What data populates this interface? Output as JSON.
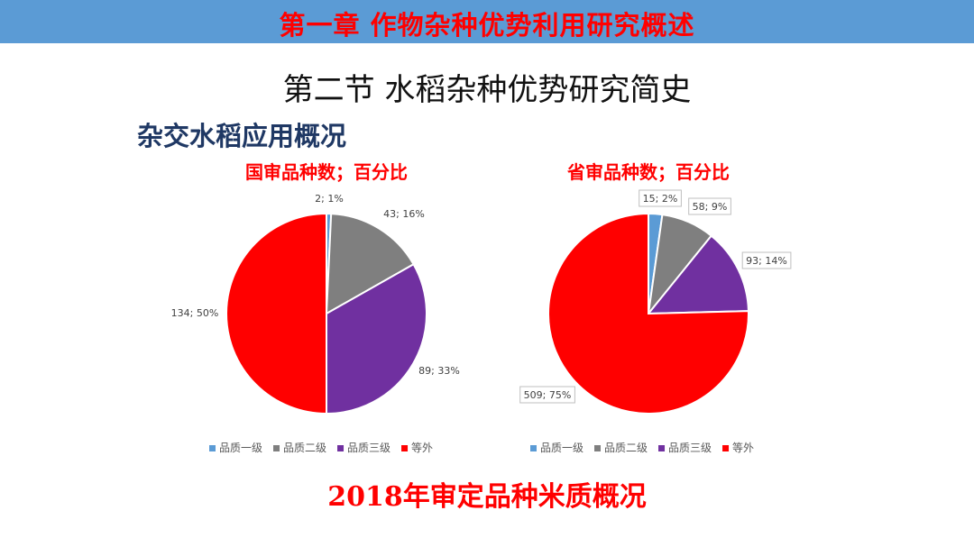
{
  "header": {
    "banner_title": "第一章  作物杂种优势利用研究概述"
  },
  "section_title": "第二节 水稻杂种优势研究简史",
  "subtitle": "杂交水稻应用概况",
  "footer_title": "2018年审定品种米质概况",
  "colors": {
    "banner": "#5b9bd5",
    "grade1": "#5b9bd5",
    "grade2": "#7f7f7f",
    "grade3": "#7030a0",
    "other": "#ff0000"
  },
  "chart_data": [
    {
      "type": "pie",
      "title": "国审品种数；百分比",
      "legend": [
        "品质一级",
        "品质二级",
        "品质三级",
        "等外"
      ],
      "legend_position": "bottom",
      "slices": [
        {
          "label": "品质一级",
          "value": 2,
          "percent": "1%",
          "data_label": "2; 1%"
        },
        {
          "label": "品质二级",
          "value": 43,
          "percent": "16%",
          "data_label": "43; 16%"
        },
        {
          "label": "品质三级",
          "value": 89,
          "percent": "33%",
          "data_label": "89; 33%"
        },
        {
          "label": "等外",
          "value": 134,
          "percent": "50%",
          "data_label": "134; 50%"
        }
      ]
    },
    {
      "type": "pie",
      "title": "省审品种数；百分比",
      "legend": [
        "品质一级",
        "品质二级",
        "品质三级",
        "等外"
      ],
      "legend_position": "bottom",
      "slices": [
        {
          "label": "品质一级",
          "value": 15,
          "percent": "2%",
          "data_label": "15; 2%"
        },
        {
          "label": "品质二级",
          "value": 58,
          "percent": "9%",
          "data_label": "58; 9%"
        },
        {
          "label": "品质三级",
          "value": 93,
          "percent": "14%",
          "data_label": "93; 14%"
        },
        {
          "label": "等外",
          "value": 509,
          "percent": "75%",
          "data_label": "509; 75%"
        }
      ]
    }
  ]
}
